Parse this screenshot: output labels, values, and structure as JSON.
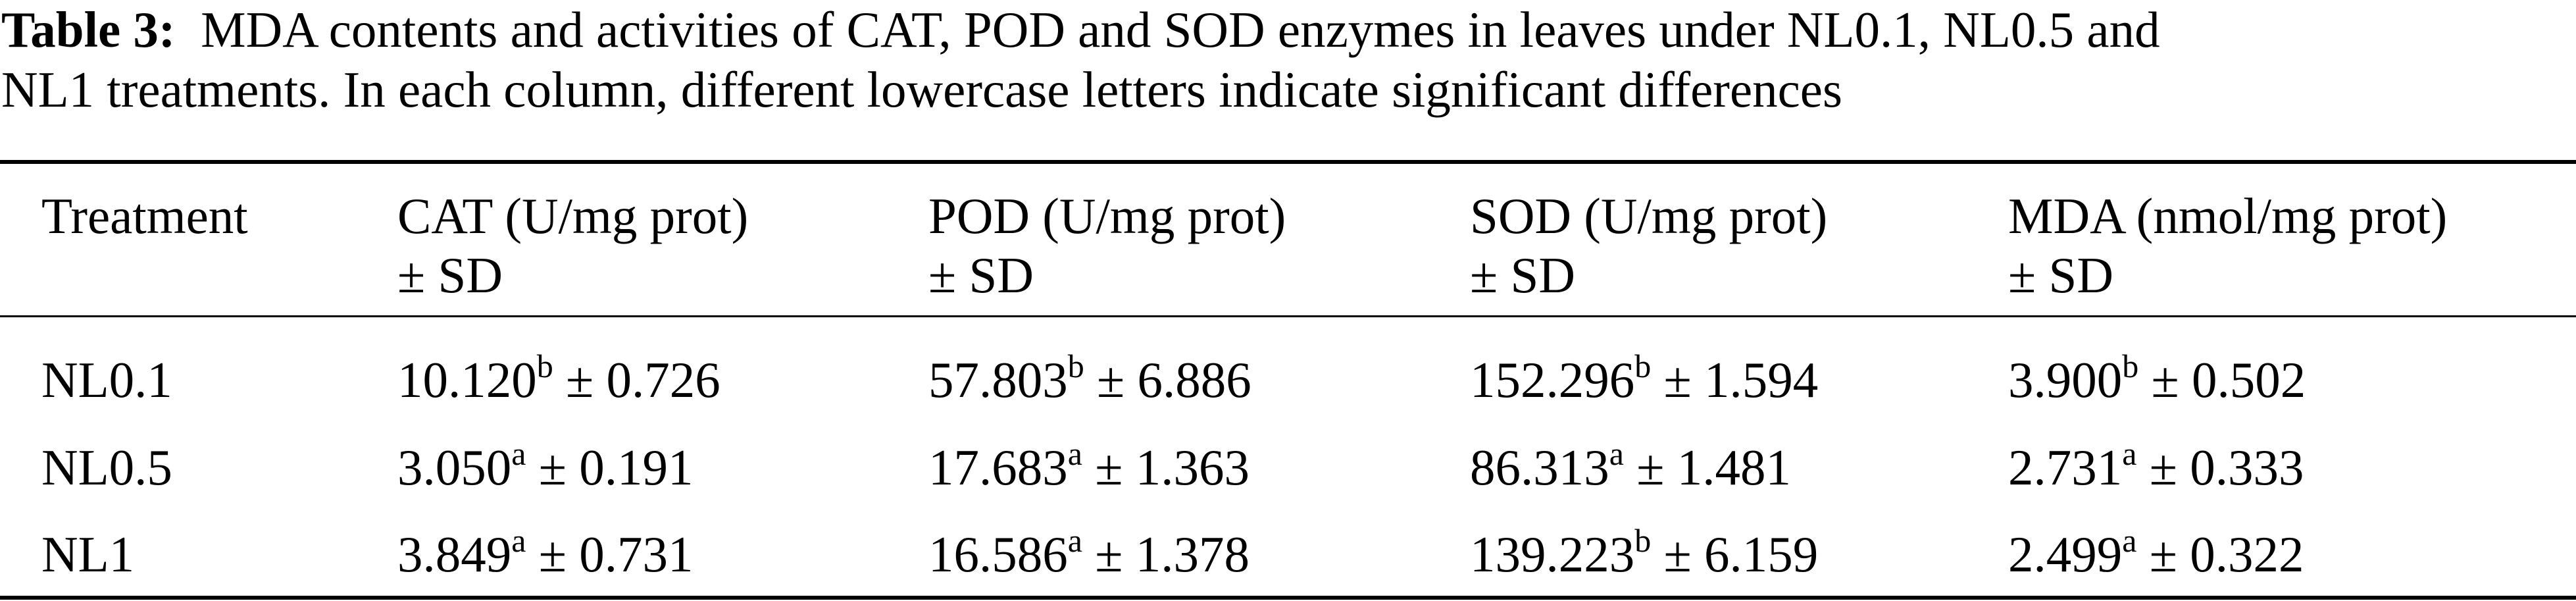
{
  "caption": {
    "label": "Table 3:",
    "line1": "MDA contents and activities of CAT, POD and SOD enzymes in leaves under NL0.1, NL0.5 and",
    "line2": "NL1 treatments. In each column, different lowercase letters indicate significant differences"
  },
  "table": {
    "headers": [
      {
        "l1": "Treatment",
        "l2": ""
      },
      {
        "l1": "CAT (U/mg prot)",
        "l2": "± SD"
      },
      {
        "l1": "POD (U/mg prot)",
        "l2": "± SD"
      },
      {
        "l1": "SOD (U/mg prot)",
        "l2": "± SD"
      },
      {
        "l1": "MDA (nmol/mg prot)",
        "l2": "± SD"
      }
    ],
    "rows": [
      {
        "treatment": "NL0.1",
        "cat": {
          "mean": "10.120",
          "letter": "b",
          "sd": " ± 0.726"
        },
        "pod": {
          "mean": "57.803",
          "letter": "b",
          "sd": " ± 6.886"
        },
        "sod": {
          "mean": "152.296",
          "letter": "b",
          "sd": " ± 1.594"
        },
        "mda": {
          "mean": "3.900",
          "letter": "b",
          "sd": " ± 0.502"
        }
      },
      {
        "treatment": "NL0.5",
        "cat": {
          "mean": "3.050",
          "letter": "a",
          "sd": " ± 0.191"
        },
        "pod": {
          "mean": "17.683",
          "letter": "a",
          "sd": " ± 1.363"
        },
        "sod": {
          "mean": "86.313",
          "letter": "a",
          "sd": " ± 1.481"
        },
        "mda": {
          "mean": "2.731",
          "letter": "a",
          "sd": " ± 0.333"
        }
      },
      {
        "treatment": "NL1",
        "cat": {
          "mean": "3.849",
          "letter": "a",
          "sd": " ± 0.731"
        },
        "pod": {
          "mean": "16.586",
          "letter": "a",
          "sd": " ± 1.378"
        },
        "sod": {
          "mean": "139.223",
          "letter": "b",
          "sd": " ± 6.159"
        },
        "mda": {
          "mean": "2.499",
          "letter": "a",
          "sd": " ± 0.322"
        }
      }
    ]
  }
}
